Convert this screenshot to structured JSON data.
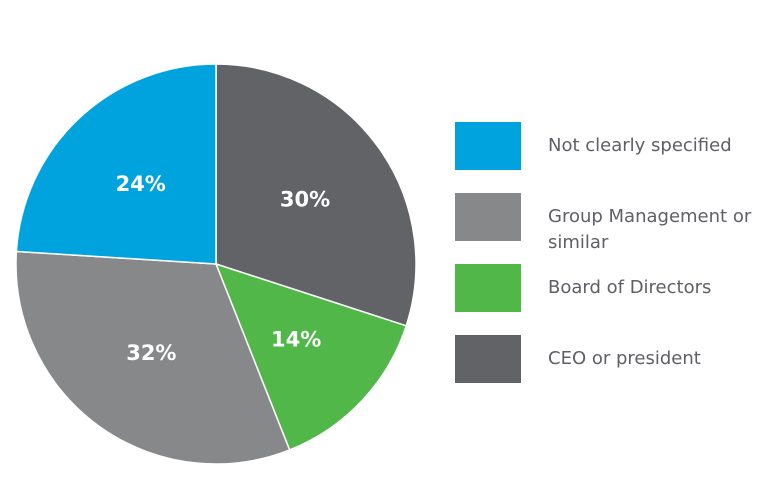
{
  "chart_data": {
    "type": "pie",
    "slices": [
      {
        "label": "CEO or president",
        "value": 30,
        "value_label": "30%",
        "color": "#626367"
      },
      {
        "label": "Board of Directors",
        "value": 14,
        "value_label": "14%",
        "color": "#50b748"
      },
      {
        "label": "Group Management or similar",
        "value": 32,
        "value_label": "32%",
        "color": "#87888a"
      },
      {
        "label": "Not clearly specified",
        "value": 24,
        "value_label": "24%",
        "color": "#00a3dd"
      }
    ],
    "legend": {
      "placement": "right",
      "items": [
        {
          "label": "Not clearly specified",
          "color": "#00a3dd"
        },
        {
          "label": "Group Management or similar",
          "color": "#87888a"
        },
        {
          "label": "Board of Directors",
          "color": "#50b748"
        },
        {
          "label": "CEO or president",
          "color": "#626367"
        }
      ]
    },
    "start_angle": "12 o'clock",
    "direction": "clockwise"
  }
}
